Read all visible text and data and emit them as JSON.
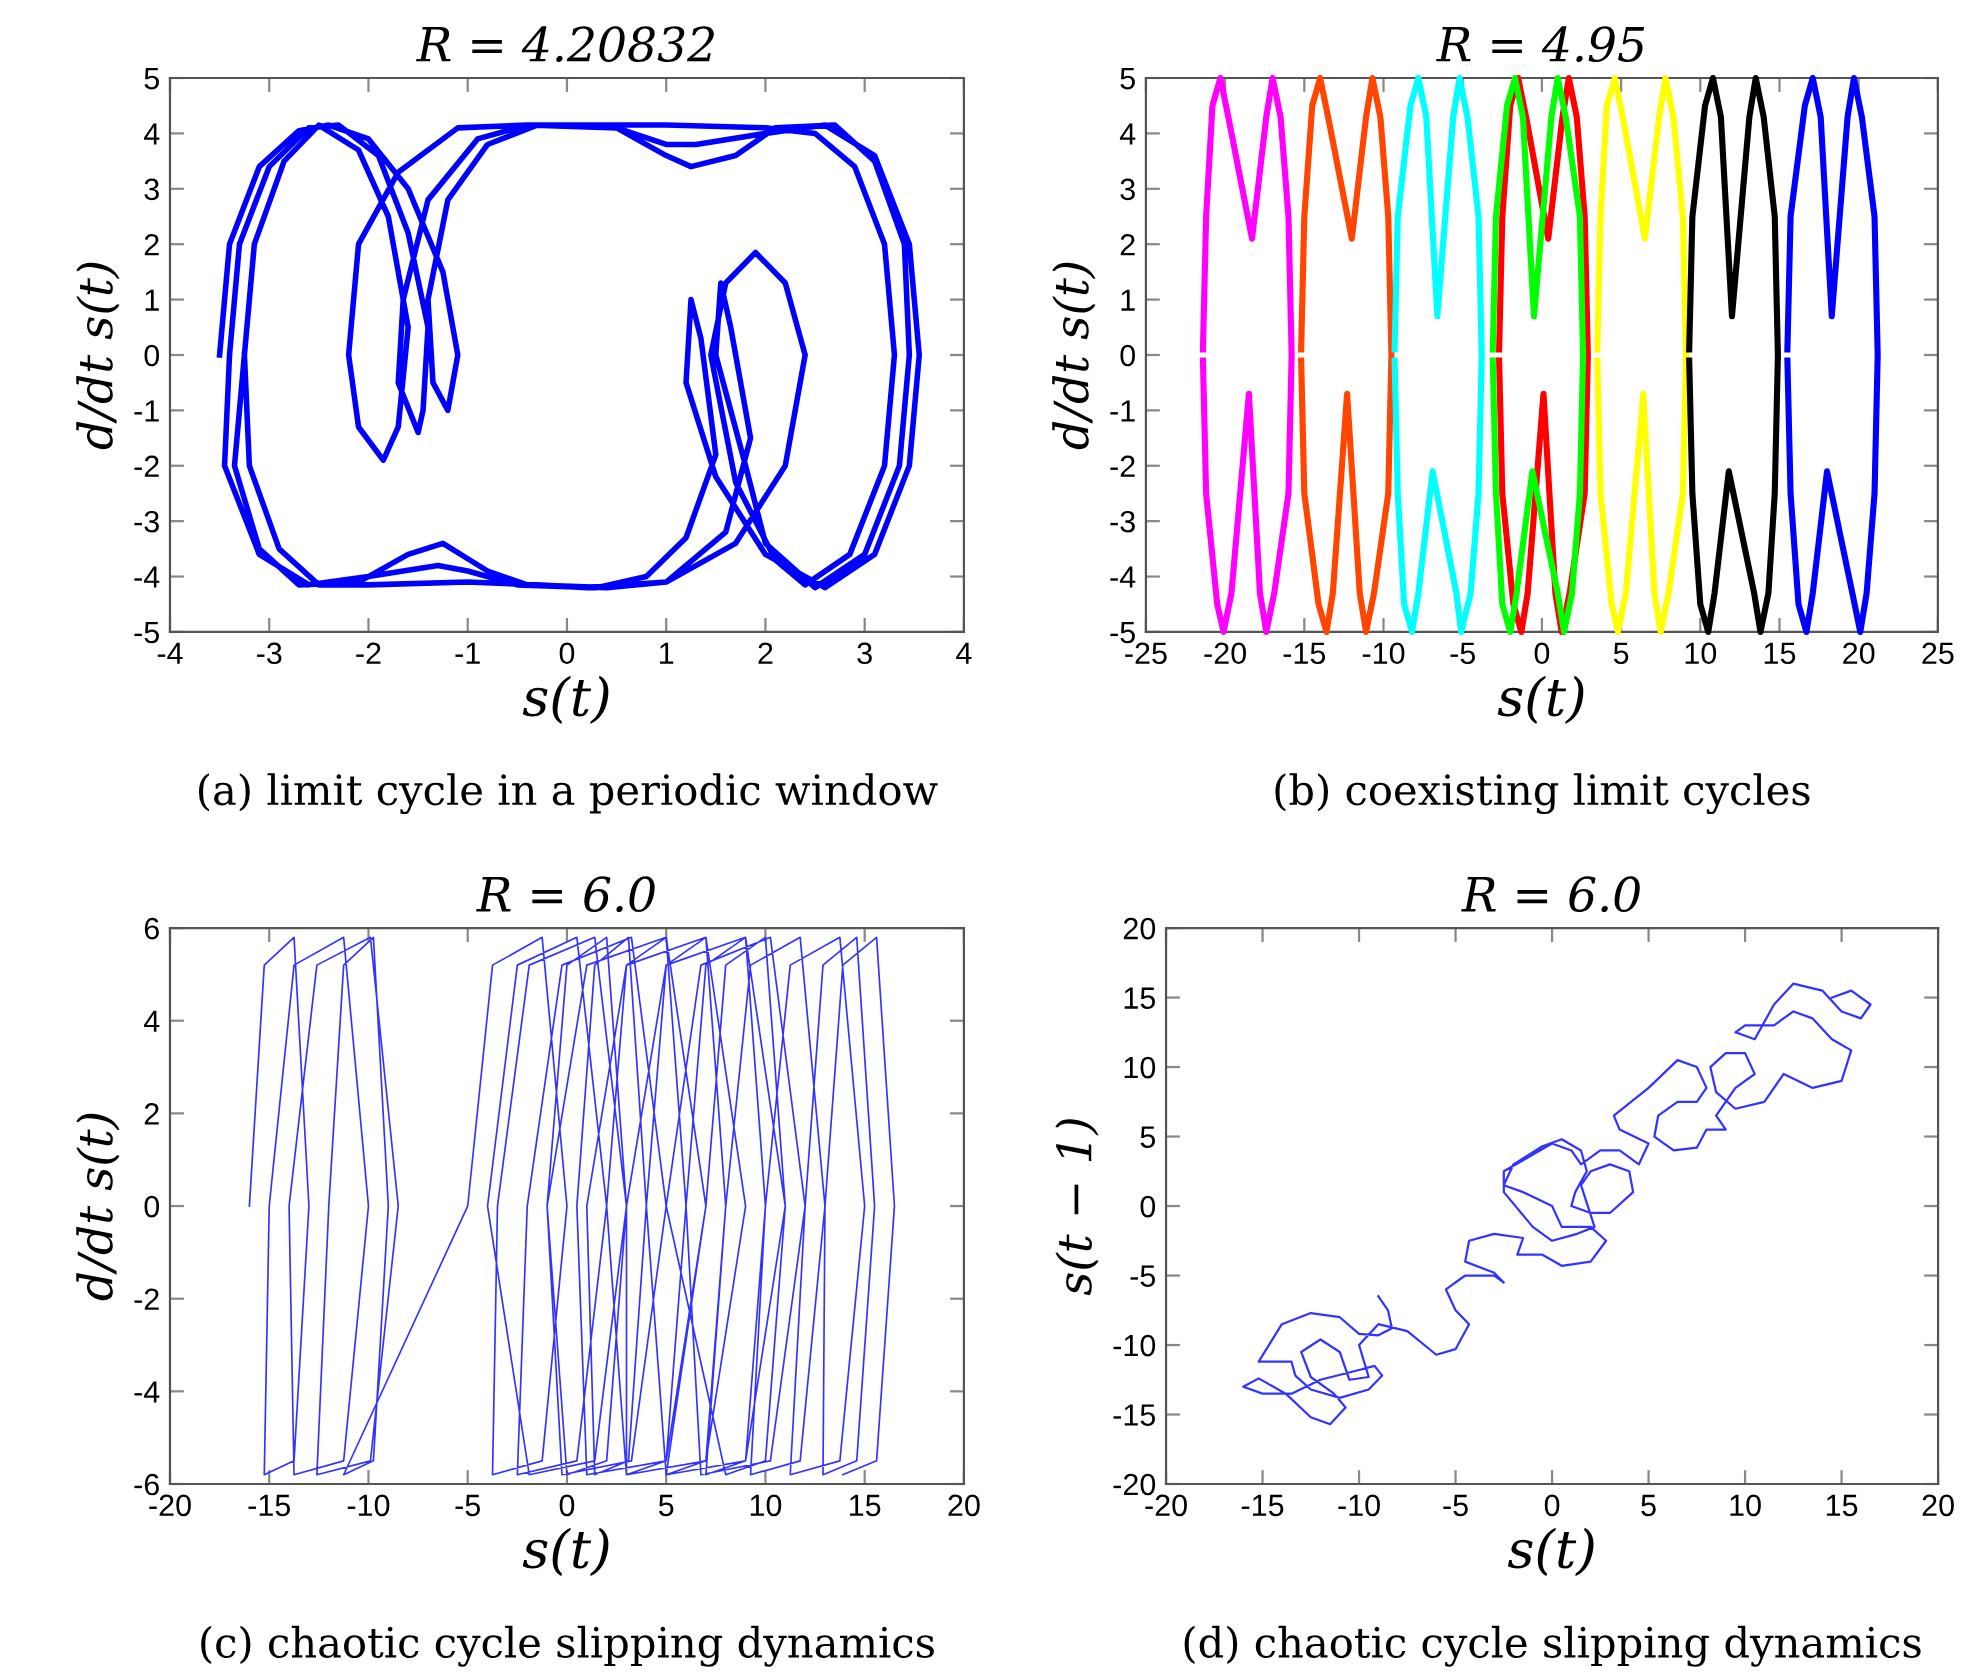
{
  "chart_data": [
    {
      "type": "line",
      "title": "R = 4.20832",
      "xlabel": "s(t)",
      "ylabel": "d/dt s(t)",
      "annotations": [
        "(a) limit cycle in a periodic window"
      ],
      "xlim": [
        -4,
        4
      ],
      "ylim": [
        -5,
        5
      ],
      "xticks": [
        -4,
        -3,
        -2,
        -1,
        0,
        1,
        2,
        3,
        4
      ],
      "yticks": [
        -5,
        -4,
        -3,
        -2,
        -1,
        0,
        1,
        2,
        3,
        4,
        5
      ],
      "series": [
        {
          "color": "#0000ff",
          "x": [
            -3.5,
            -3.4,
            -3.1,
            -2.7,
            -2.4,
            -2.0,
            -1.6,
            -1.25,
            -1.1,
            -1.2,
            -1.35,
            -1.4,
            -1.2,
            -0.8,
            -0.3,
            0.5,
            1.0,
            1.3,
            2.0,
            2.6,
            3.1,
            3.45,
            3.55,
            3.45,
            3.1,
            2.6,
            2.0,
            1.5,
            1.2,
            1.25,
            1.35,
            1.5,
            1.2,
            0.8,
            0.3,
            -0.5,
            -1.0,
            -1.3,
            -2.0,
            -2.6,
            -3.1,
            -3.45,
            -3.4,
            -3.3,
            -3.0,
            -2.6,
            -2.3,
            -1.9,
            -1.6,
            -1.4,
            -1.45,
            -1.5,
            -1.7,
            -1.65,
            -1.4,
            -0.9,
            -0.4,
            0.5,
            1.0,
            1.25,
            1.7,
            2.1,
            2.7,
            3.1,
            3.4,
            3.45,
            3.35,
            3.0,
            2.5,
            2.0,
            1.8,
            1.5,
            1.55,
            1.65,
            1.85,
            1.6,
            1.0,
            0.4,
            -0.4,
            -0.8,
            -1.25,
            -1.6,
            -2.1,
            -2.7,
            -3.1,
            -3.35,
            -3.25,
            -3.15,
            -2.85,
            -2.5,
            -2.1,
            -1.8,
            -1.6,
            -1.7,
            -1.85,
            -2.1,
            -2.2,
            -2.1,
            -1.7,
            -1.1,
            -0.4,
            0.5,
            1.0,
            2.0,
            2.5,
            2.9,
            3.2,
            3.3,
            3.2,
            2.85,
            2.4,
            2.1,
            1.7,
            1.45,
            1.6,
            1.9,
            2.2,
            2.4,
            2.2,
            1.7,
            1.0,
            0.2,
            -0.3,
            -1.0,
            -2.0,
            -2.5,
            -2.9,
            -3.2,
            -3.25
          ],
          "values": [
            0,
            2,
            3.4,
            4.05,
            4.15,
            3.9,
            3.0,
            1.5,
            0,
            -1.0,
            -0.5,
            1,
            2.8,
            3.8,
            4.15,
            4.1,
            3.8,
            3.8,
            4.0,
            4.15,
            3.6,
            2.0,
            0,
            -2,
            -3.6,
            -4.2,
            -3.6,
            -2.2,
            -0.5,
            1.0,
            0.3,
            -1.8,
            -3.3,
            -4.0,
            -4.2,
            -4.15,
            -3.9,
            -3.8,
            -4.0,
            -4.15,
            -3.6,
            -2.0,
            0,
            2,
            3.4,
            4.1,
            4.15,
            3.6,
            2.2,
            0.5,
            -1.0,
            -1.4,
            -0.5,
            1,
            2.8,
            3.9,
            4.15,
            4.1,
            3.6,
            3.4,
            3.6,
            4.1,
            4.15,
            3.5,
            2.0,
            0,
            -2,
            -3.6,
            -4.2,
            -3.4,
            -2,
            0,
            1.3,
            0.5,
            -1.5,
            -3.2,
            -4.1,
            -4.2,
            -4.15,
            -3.9,
            -3.4,
            -3.6,
            -4.1,
            -4.15,
            -3.5,
            -2.0,
            0,
            2,
            3.5,
            4.15,
            3.7,
            2.5,
            0.5,
            -1.3,
            -1.9,
            -1.3,
            0,
            2,
            3.3,
            4.1,
            4.15,
            4.15,
            4.15,
            4.1,
            4.0,
            3.4,
            2,
            0,
            -2,
            -3.6,
            -4.15,
            -3.7,
            -2.3,
            0,
            1.3,
            1.85,
            1.3,
            0,
            -2,
            -3.4,
            -4.1,
            -4.2,
            -4.15,
            -4.1,
            -4.15,
            -4.15,
            -3.5,
            -2,
            0
          ]
        }
      ]
    },
    {
      "type": "line",
      "title": "R = 4.95",
      "xlabel": "s(t)",
      "ylabel": "d/dt s(t)",
      "annotations": [
        "(b) coexisting limit cycles"
      ],
      "xlim": [
        -25,
        25
      ],
      "ylim": [
        -5,
        5
      ],
      "xticks": [
        -25,
        -20,
        -15,
        -10,
        -5,
        0,
        5,
        10,
        15,
        20,
        25
      ],
      "yticks": [
        -5,
        -4,
        -3,
        -2,
        -1,
        0,
        1,
        2,
        3,
        4,
        5
      ],
      "series": [
        {
          "color": "#ff00ff",
          "x": [
            -21.4,
            -21.2,
            -20.8,
            -20.3,
            -19.8,
            -18.3,
            -17.4,
            -17.0,
            -16.5,
            -16.0,
            -15.8,
            -16.0,
            -16.9,
            -17.4,
            -17.8,
            -18.5,
            -19.6,
            -20.1,
            -20.5,
            -21.2,
            -21.4
          ],
          "values": [
            0.1,
            2.5,
            4.5,
            5,
            4.3,
            2.1,
            4.3,
            5,
            4.3,
            2.5,
            0,
            -2.5,
            -4.3,
            -5,
            -4.3,
            -0.7,
            -4.3,
            -5,
            -4.5,
            -2.5,
            -0.1
          ]
        },
        {
          "color": "#ff4500",
          "x": [
            -15.2,
            -15.0,
            -14.5,
            -14.0,
            -13.5,
            -12.0,
            -11.1,
            -10.7,
            -10.2,
            -9.7,
            -9.5,
            -9.7,
            -10.6,
            -11.1,
            -11.5,
            -12.3,
            -13.2,
            -13.6,
            -14.1,
            -15.0,
            -15.2
          ],
          "values": [
            0.1,
            2.5,
            4.5,
            5,
            4.3,
            2.1,
            4.3,
            5,
            4.3,
            2.5,
            0,
            -2.5,
            -4.3,
            -5,
            -4.3,
            -0.7,
            -4.3,
            -5,
            -4.5,
            -2.5,
            -0.1
          ]
        },
        {
          "color": "#00ffff",
          "x": [
            -9.3,
            -9.1,
            -8.3,
            -7.8,
            -7.3,
            -6.6,
            -5.6,
            -5.2,
            -4.7,
            -4.0,
            -3.8,
            -4.0,
            -4.5,
            -5.1,
            -5.4,
            -6.9,
            -7.8,
            -8.2,
            -8.7,
            -9.1,
            -9.3
          ],
          "values": [
            0.1,
            2.5,
            4.5,
            5,
            4.3,
            0.7,
            4.3,
            5,
            4.3,
            2.5,
            0,
            -2.5,
            -4.3,
            -5,
            -4.3,
            -2.1,
            -4.3,
            -5,
            -4.5,
            -2.5,
            -0.1
          ]
        },
        {
          "color": "#ff0000",
          "x": [
            -2.7,
            -2.5,
            -2.0,
            -1.5,
            -1.0,
            0.4,
            1.3,
            1.7,
            2.2,
            2.7,
            2.9,
            2.7,
            1.75,
            1.25,
            0.85,
            0.1,
            -0.9,
            -1.3,
            -1.8,
            -2.5,
            -2.7
          ],
          "values": [
            0.1,
            2.5,
            4.5,
            5,
            4.3,
            2.1,
            4.3,
            5,
            4.3,
            2.5,
            0,
            -2.5,
            -4.3,
            -5,
            -4.3,
            -0.7,
            -4.3,
            -5,
            -4.5,
            -2.5,
            -0.1
          ]
        },
        {
          "color": "#00ff00",
          "x": [
            -3.1,
            -2.9,
            -2.2,
            -1.7,
            -1.2,
            -0.5,
            0.6,
            1.0,
            1.5,
            2.4,
            2.6,
            2.4,
            1.9,
            1.4,
            1.0,
            -0.6,
            -1.6,
            -2.0,
            -2.5,
            -2.9,
            -3.1
          ],
          "values": [
            0.1,
            2.5,
            4.5,
            5,
            4.3,
            0.7,
            4.3,
            5,
            4.3,
            2.5,
            0,
            -2.5,
            -4.3,
            -5,
            -4.3,
            -2.1,
            -4.3,
            -5,
            -4.5,
            -2.5,
            -0.1
          ]
        },
        {
          "color": "#ffff00",
          "x": [
            3.5,
            3.7,
            4.1,
            4.6,
            5.1,
            6.5,
            7.4,
            7.8,
            8.3,
            8.9,
            9.1,
            8.9,
            8.0,
            7.5,
            7.1,
            6.4,
            5.3,
            4.8,
            4.4,
            3.7,
            3.5
          ],
          "values": [
            0.1,
            2.5,
            4.5,
            5,
            4.3,
            2.1,
            4.3,
            5,
            4.3,
            2.5,
            0,
            -2.5,
            -4.3,
            -5,
            -4.3,
            -0.7,
            -4.3,
            -5,
            -4.5,
            -2.5,
            -0.1
          ]
        },
        {
          "color": "#000000",
          "x": [
            9.3,
            9.5,
            10.3,
            10.8,
            11.3,
            12.0,
            13.1,
            13.5,
            14.0,
            14.7,
            14.9,
            14.7,
            14.3,
            13.8,
            13.4,
            11.8,
            10.9,
            10.5,
            10.0,
            9.5,
            9.3
          ],
          "values": [
            0.1,
            2.5,
            4.5,
            5,
            4.3,
            0.7,
            4.3,
            5,
            4.3,
            2.5,
            0,
            -2.5,
            -4.3,
            -5,
            -4.3,
            -2.1,
            -4.3,
            -5,
            -4.5,
            -2.5,
            -0.1
          ]
        },
        {
          "color": "#0000ff",
          "x": [
            15.5,
            15.7,
            16.6,
            17.1,
            17.6,
            18.3,
            19.3,
            19.7,
            20.2,
            21.0,
            21.2,
            21.0,
            20.5,
            20.1,
            19.6,
            18.0,
            17.1,
            16.7,
            16.2,
            15.7,
            15.5
          ],
          "values": [
            0.1,
            2.5,
            4.5,
            5,
            4.3,
            0.7,
            4.3,
            5,
            4.3,
            2.5,
            0,
            -2.5,
            -4.3,
            -5,
            -4.3,
            -2.1,
            -4.3,
            -5,
            -4.5,
            -2.5,
            -0.1
          ]
        }
      ]
    },
    {
      "type": "line",
      "title": "R = 6.0",
      "xlabel": "s(t)",
      "ylabel": "d/dt s(t)",
      "annotations": [
        "(c) chaotic cycle slipping dynamics"
      ],
      "xlim": [
        -20,
        20
      ],
      "ylim": [
        -6,
        6
      ],
      "xticks": [
        -20,
        -15,
        -10,
        -5,
        0,
        5,
        10,
        15,
        20
      ],
      "yticks": [
        -6,
        -4,
        -2,
        0,
        2,
        4,
        6
      ],
      "series": [
        {
          "color": "#3333ff",
          "x": [
            -16,
            -15.25,
            -13.75,
            -13,
            -13.75,
            -15.25,
            -15,
            -13.75,
            -11.25,
            -10,
            -11.25,
            -13.75,
            -14,
            -12.6,
            -9.9,
            -8.5,
            -9.9,
            -12.6,
            -12,
            -11.25,
            -9.75,
            -9,
            -9.75,
            -11.25,
            -5,
            -3.75,
            -1.25,
            0,
            -1.25,
            -3.75,
            -3.5,
            -1.9,
            1.4,
            3,
            1.4,
            -1.9,
            -4,
            -2.5,
            0.5,
            2,
            0.5,
            -2.5,
            -2,
            -0.25,
            3.25,
            5,
            3.25,
            -0.25,
            -1,
            0,
            2,
            3,
            2,
            0,
            -1,
            1,
            5,
            7,
            5,
            1,
            0.5,
            1.4,
            3.1,
            4,
            3.1,
            1.4,
            1,
            3,
            7,
            9,
            7,
            3,
            2,
            3,
            5,
            6,
            5,
            3,
            3,
            5,
            9,
            11,
            9,
            5,
            4,
            5,
            7,
            8,
            7,
            5,
            7,
            8,
            10,
            11,
            10,
            8,
            5,
            6.75,
            10.25,
            12,
            10.25,
            6.75,
            6,
            7,
            9,
            10,
            9,
            7,
            8,
            9.25,
            11.75,
            13,
            11.75,
            9.25,
            10,
            11.25,
            13.75,
            15,
            13.75,
            11.25,
            12,
            12.9,
            14.6,
            15.5,
            14.6,
            12.9,
            13,
            13.9,
            15.6,
            16.5,
            15.6,
            13.9
          ],
          "values": [
            0,
            5.2,
            5.8,
            0,
            -5.5,
            -5.8,
            0,
            5.2,
            5.8,
            0,
            -5.5,
            -5.8,
            0,
            5.2,
            5.8,
            0,
            -5.5,
            -5.8,
            0,
            5.2,
            5.8,
            0,
            -5.5,
            -5.8,
            0,
            5.2,
            5.8,
            0,
            -5.5,
            -5.8,
            0,
            5.2,
            5.8,
            0,
            -5.5,
            -5.8,
            0,
            5.2,
            5.8,
            0,
            -5.5,
            -5.8,
            0,
            5.2,
            5.8,
            0,
            -5.5,
            -5.8,
            0,
            5.2,
            5.8,
            0,
            -5.5,
            -5.8,
            0,
            5.2,
            5.8,
            0,
            -5.5,
            -5.8,
            0,
            5.2,
            5.8,
            0,
            -5.5,
            -5.8,
            0,
            5.2,
            5.8,
            0,
            -5.5,
            -5.8,
            0,
            5.2,
            5.8,
            0,
            -5.5,
            -5.8,
            0,
            5.2,
            5.8,
            0,
            -5.5,
            -5.8,
            0,
            5.2,
            5.8,
            0,
            -5.5,
            -5.8,
            0,
            5.2,
            5.8,
            0,
            -5.5,
            -5.8,
            0,
            5.2,
            5.8,
            0,
            -5.5,
            -5.8,
            0,
            5.2,
            5.8,
            0,
            -5.5,
            -5.8,
            0,
            5.2,
            5.8,
            0,
            -5.5,
            -5.8,
            0,
            5.2,
            5.8,
            0,
            -5.5,
            -5.8,
            0,
            5.2,
            5.8,
            0,
            -5.5,
            -5.8,
            0,
            5.2,
            5.8,
            0,
            -5.5,
            -5.8
          ]
        }
      ]
    },
    {
      "type": "line",
      "title": "R = 6.0",
      "xlabel": "s(t)",
      "ylabel": "s(t − 1)",
      "annotations": [
        "(d) chaotic cycle slipping dynamics"
      ],
      "xlim": [
        -20,
        20
      ],
      "ylim": [
        -20,
        20
      ],
      "xticks": [
        -20,
        -15,
        -10,
        -5,
        0,
        5,
        10,
        15,
        20
      ],
      "yticks": [
        -20,
        -15,
        -10,
        -5,
        0,
        5,
        10,
        15,
        20
      ],
      "series": [
        {
          "color": "#3333ff",
          "x": [
            -9,
            -8.5,
            -8.3,
            -9,
            -10,
            -11,
            -12.5,
            -14,
            -15.2,
            -13.5,
            -13.3,
            -12.5,
            -11,
            -9.5,
            -8.8,
            -9.2,
            -10,
            -12,
            -13.5,
            -15,
            -16,
            -15.2,
            -13.8,
            -12.5,
            -11.5,
            -10.7,
            -11.3,
            -12.5,
            -13,
            -12,
            -11,
            -10.5,
            -9.5,
            -10,
            -9,
            -7.5,
            -6,
            -5,
            -4.3,
            -5,
            -5.5,
            -4.5,
            -3,
            -2.5,
            -3,
            -4.5,
            -4.3,
            -3,
            -1.5,
            -1.8,
            -0.5,
            0.5,
            2,
            2.8,
            2,
            0.5,
            0,
            -1.5,
            -2.5,
            -2,
            -0.5,
            0.5,
            1.5,
            1.8,
            1.2,
            1,
            2,
            3,
            4.2,
            4,
            3,
            2,
            1.5,
            2.2,
            1.3,
            0,
            -1,
            -2.5,
            -2.5,
            -1.5,
            0,
            1,
            1.5,
            2.5,
            3.5,
            4.5,
            5,
            3.5,
            3.2,
            5,
            6.5,
            7.5,
            8,
            7.5,
            6.5,
            5.5,
            5.3,
            6.3,
            7.5,
            8,
            9,
            8.5,
            9.5,
            10.5,
            10,
            9,
            8.2,
            8.5,
            9.5,
            11,
            12,
            13.5,
            15,
            15.5,
            14.5,
            13.5,
            12.5,
            11.5,
            10,
            9.5,
            10.5,
            11.5,
            12.5,
            14,
            15,
            16,
            16.5,
            15.5,
            14.5
          ],
          "values": [
            -6.5,
            -7.5,
            -8.8,
            -9.3,
            -9.2,
            -8,
            -7.7,
            -8.5,
            -11.2,
            -11.2,
            -12.2,
            -13.2,
            -13.8,
            -13.2,
            -12.2,
            -11.5,
            -11.8,
            -12.5,
            -13.5,
            -13.5,
            -13,
            -12.4,
            -13.5,
            -15.2,
            -15.7,
            -14.5,
            -13.5,
            -12.3,
            -10.5,
            -9.6,
            -10.5,
            -12.5,
            -12.3,
            -10,
            -8.5,
            -9,
            -10.7,
            -10.3,
            -8.5,
            -7.5,
            -6,
            -5,
            -5,
            -5.5,
            -4.8,
            -4,
            -2.5,
            -2,
            -2.3,
            -3.5,
            -3.5,
            -4.3,
            -4,
            -2.5,
            -1.5,
            -1.5,
            0,
            1,
            1.5,
            3,
            4.3,
            4.8,
            4,
            2.5,
            1,
            0,
            -0.5,
            -0.5,
            1,
            2.5,
            3,
            2.5,
            1.5,
            -1.5,
            -2,
            -2.5,
            -1.5,
            1,
            2.5,
            3.3,
            4.5,
            4,
            3,
            4,
            4,
            3,
            4.5,
            5.5,
            6.5,
            8.5,
            10.5,
            10,
            8.5,
            7.5,
            7.5,
            6.5,
            5,
            4,
            4.2,
            5.5,
            5.5,
            6.5,
            8.5,
            9.5,
            11,
            11,
            10,
            8.2,
            7,
            7.5,
            9.5,
            8.5,
            9,
            11.2,
            12,
            13.5,
            14,
            13,
            13,
            12.5,
            12,
            14.5,
            16,
            15.5,
            14,
            13.5,
            14.5,
            15.5,
            15
          ]
        }
      ]
    }
  ]
}
